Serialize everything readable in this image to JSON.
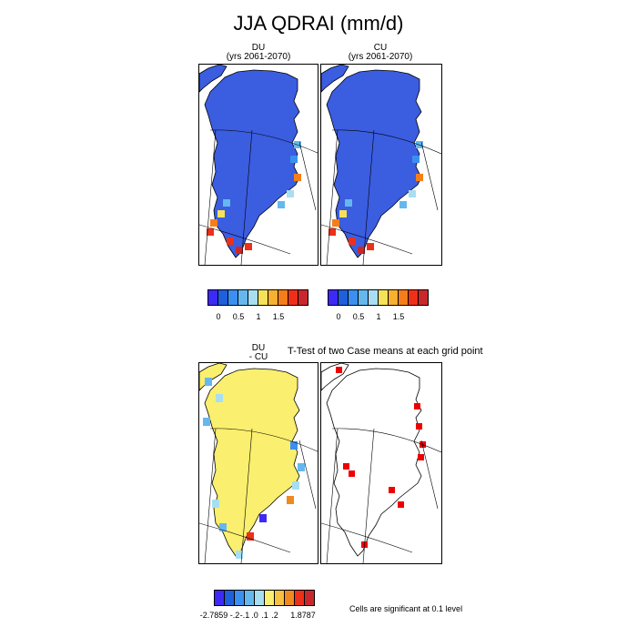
{
  "figure": {
    "title": "JJA QDRAI (mm/d)",
    "panels": {
      "du": {
        "line1": "DU",
        "line2": "(yrs 2061-2070)"
      },
      "cu": {
        "line1": "CU",
        "line2": "(yrs 2061-2070)"
      },
      "diff": {
        "line1": "DU",
        "line2": "- CU"
      },
      "ttest": {
        "title": "T-Test of two Case means at each grid point"
      }
    },
    "colorbar_abs": {
      "colors": [
        "#3d2af5",
        "#1f5fdc",
        "#3b8ff0",
        "#65b8ee",
        "#a8def2",
        "#f5e25a",
        "#f8b030",
        "#f67e1a",
        "#ee3018",
        "#c8282c"
      ],
      "tick_labels": [
        "0",
        "0.5",
        "1",
        "1.5"
      ]
    },
    "colorbar_diff": {
      "colors": [
        "#3d2af5",
        "#1f5fdc",
        "#3b8ff0",
        "#65b8ee",
        "#a8def2",
        "#faef6e",
        "#f8c040",
        "#f08a1e",
        "#ee3018",
        "#c8282c"
      ],
      "tick_labels": [
        "-2.7859",
        "-.2",
        "-.1",
        ".0",
        ".1",
        ".2",
        "1.8787"
      ]
    },
    "significance_note": "Cells are significant at 0.1 level"
  },
  "colors": {
    "abs_fill": "#3b5de0",
    "diff_fill": "#faef6e",
    "significant": "#ee0000",
    "coast": "#000000"
  }
}
